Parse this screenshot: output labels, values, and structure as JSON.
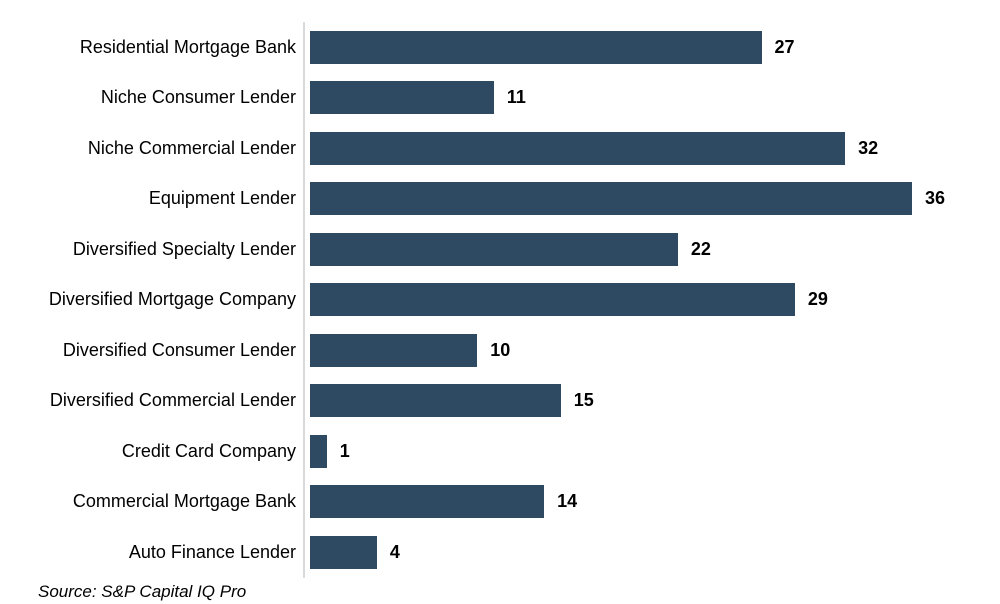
{
  "chart_data": {
    "type": "bar",
    "orientation": "horizontal",
    "title": "",
    "xlabel": "",
    "ylabel": "",
    "categories": [
      "Residential Mortgage Bank",
      "Niche Consumer Lender",
      "Niche Commercial Lender",
      "Equipment Lender",
      "Diversified Specialty Lender",
      "Diversified Mortgage Company",
      "Diversified Consumer Lender",
      "Diversified Commercial Lender",
      "Credit Card Company",
      "Commercial Mortgage Bank",
      "Auto Finance Lender"
    ],
    "values": [
      27,
      11,
      32,
      36,
      22,
      29,
      10,
      15,
      1,
      14,
      4
    ],
    "xlim": [
      0,
      36
    ],
    "grid": false,
    "legend": false,
    "value_labels": "bold, right of each bar",
    "bar_color": "#2e4a62",
    "axis_line_color": "#d9d9d9",
    "text_color": "#000000",
    "background_color": "#ffffff"
  },
  "source_note": "Source: S&P Capital IQ Pro"
}
